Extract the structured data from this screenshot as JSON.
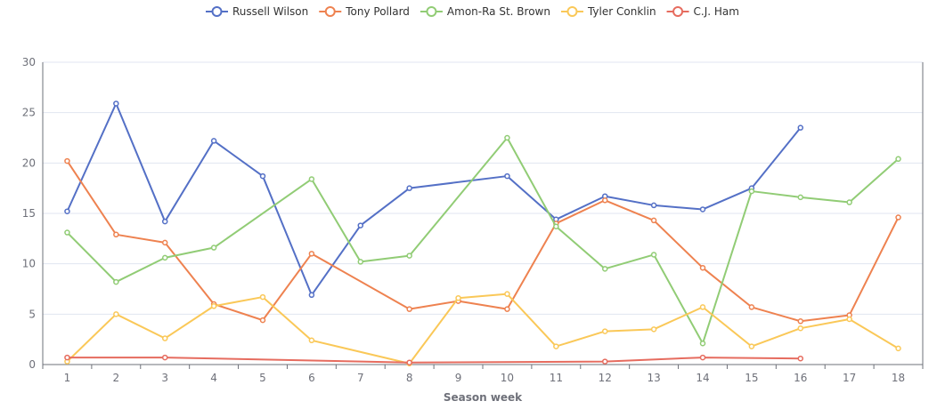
{
  "chart_data": {
    "type": "line",
    "xlabel": "Season week",
    "ylabel": "",
    "ylim": [
      0,
      30
    ],
    "yticks": [
      0,
      5,
      10,
      15,
      20,
      25,
      30
    ],
    "x": [
      1,
      2,
      3,
      4,
      5,
      6,
      7,
      8,
      9,
      10,
      11,
      12,
      13,
      14,
      15,
      16,
      17,
      18
    ],
    "grid": "horizontal",
    "legend_position": "top-center",
    "series": [
      {
        "name": "Russell Wilson",
        "color": "#5470c6",
        "points": [
          [
            1,
            15.2
          ],
          [
            2,
            25.9
          ],
          [
            3,
            14.2
          ],
          [
            4,
            22.2
          ],
          [
            5,
            18.7
          ],
          [
            6,
            6.9
          ],
          [
            7,
            13.8
          ],
          [
            8,
            17.5
          ],
          [
            10,
            18.7
          ],
          [
            11,
            14.4
          ],
          [
            12,
            16.7
          ],
          [
            13,
            15.8
          ],
          [
            14,
            15.4
          ],
          [
            15,
            17.5
          ],
          [
            16,
            23.5
          ]
        ]
      },
      {
        "name": "Tony Pollard",
        "color": "#ee8250",
        "points": [
          [
            1,
            20.2
          ],
          [
            2,
            12.9
          ],
          [
            3,
            12.1
          ],
          [
            4,
            6.0
          ],
          [
            5,
            4.4
          ],
          [
            6,
            11.0
          ],
          [
            8,
            5.5
          ],
          [
            9,
            6.3
          ],
          [
            10,
            5.5
          ],
          [
            11,
            14.0
          ],
          [
            12,
            16.3
          ],
          [
            13,
            14.3
          ],
          [
            14,
            9.6
          ],
          [
            15,
            5.7
          ],
          [
            16,
            4.3
          ],
          [
            17,
            4.9
          ],
          [
            18,
            14.6
          ]
        ]
      },
      {
        "name": "Amon-Ra St. Brown",
        "color": "#91cc75",
        "points": [
          [
            1,
            13.1
          ],
          [
            2,
            8.2
          ],
          [
            3,
            10.6
          ],
          [
            4,
            11.6
          ],
          [
            6,
            18.4
          ],
          [
            7,
            10.2
          ],
          [
            8,
            10.8
          ],
          [
            10,
            22.5
          ],
          [
            11,
            13.7
          ],
          [
            12,
            9.5
          ],
          [
            13,
            10.9
          ],
          [
            14,
            2.1
          ],
          [
            15,
            17.2
          ],
          [
            16,
            16.6
          ],
          [
            17,
            16.1
          ],
          [
            18,
            20.4
          ]
        ]
      },
      {
        "name": "Tyler Conklin",
        "color": "#fac858",
        "points": [
          [
            1,
            0.3
          ],
          [
            2,
            5.0
          ],
          [
            3,
            2.6
          ],
          [
            4,
            5.8
          ],
          [
            5,
            6.7
          ],
          [
            6,
            2.4
          ],
          [
            8,
            0.1
          ],
          [
            9,
            6.6
          ],
          [
            10,
            7.0
          ],
          [
            11,
            1.8
          ],
          [
            12,
            3.3
          ],
          [
            13,
            3.5
          ],
          [
            14,
            5.7
          ],
          [
            15,
            1.8
          ],
          [
            16,
            3.6
          ],
          [
            17,
            4.5
          ],
          [
            18,
            1.6
          ]
        ]
      },
      {
        "name": "C.J. Ham",
        "color": "#e66c5f",
        "points": [
          [
            1,
            0.7
          ],
          [
            3,
            0.7
          ],
          [
            8,
            0.2
          ],
          [
            12,
            0.3
          ],
          [
            14,
            0.7
          ],
          [
            16,
            0.6
          ]
        ]
      }
    ]
  }
}
